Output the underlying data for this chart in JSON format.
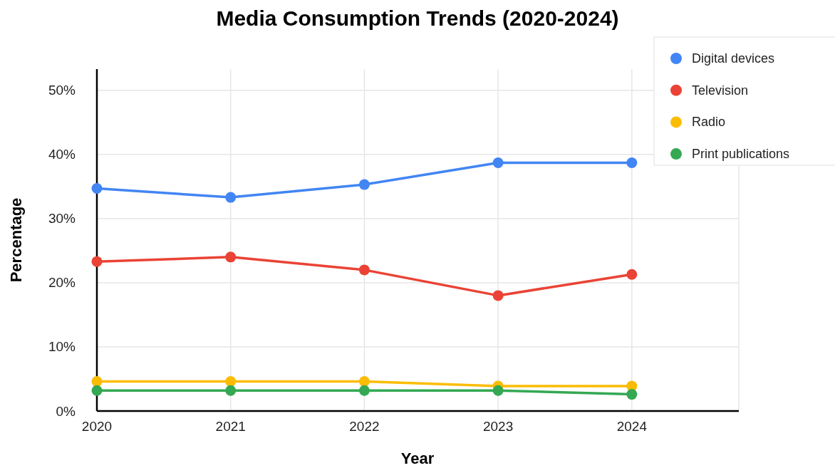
{
  "chart_data": {
    "type": "line",
    "title": "Media Consumption Trends (2020-2024)",
    "xlabel": "Year",
    "ylabel": "Percentage",
    "x": [
      2020,
      2021,
      2022,
      2023,
      2024
    ],
    "xlim": [
      2020,
      2024.8
    ],
    "xticks": [
      2020,
      2021,
      2022,
      2023,
      2024,
      {
        "value": 2024.8,
        "label": null
      }
    ],
    "ylim": [
      0,
      53.3
    ],
    "yticks": [
      {
        "value": 0,
        "label": "0%"
      },
      {
        "value": 10,
        "label": "10%"
      },
      {
        "value": 20,
        "label": "20%"
      },
      {
        "value": 30,
        "label": "30%"
      },
      {
        "value": 40,
        "label": "40%"
      },
      {
        "value": 50,
        "label": "50%"
      }
    ],
    "series": [
      {
        "name": "Digital devices",
        "color": "#4285f4",
        "values": [
          34.7,
          33.3,
          35.3,
          38.7,
          38.7
        ]
      },
      {
        "name": "Television",
        "color": "#ea4335",
        "values": [
          23.3,
          24,
          22,
          18,
          21.3
        ]
      },
      {
        "name": "Radio",
        "color": "#fbbc04",
        "values": [
          4.6,
          4.6,
          4.6,
          3.9,
          3.9
        ]
      },
      {
        "name": "Print publications",
        "color": "#34a853",
        "values": [
          3.2,
          3.2,
          3.2,
          3.2,
          2.6
        ]
      }
    ],
    "grid": true,
    "legend": "top right",
    "marker": "circle",
    "line_style": "solid"
  }
}
